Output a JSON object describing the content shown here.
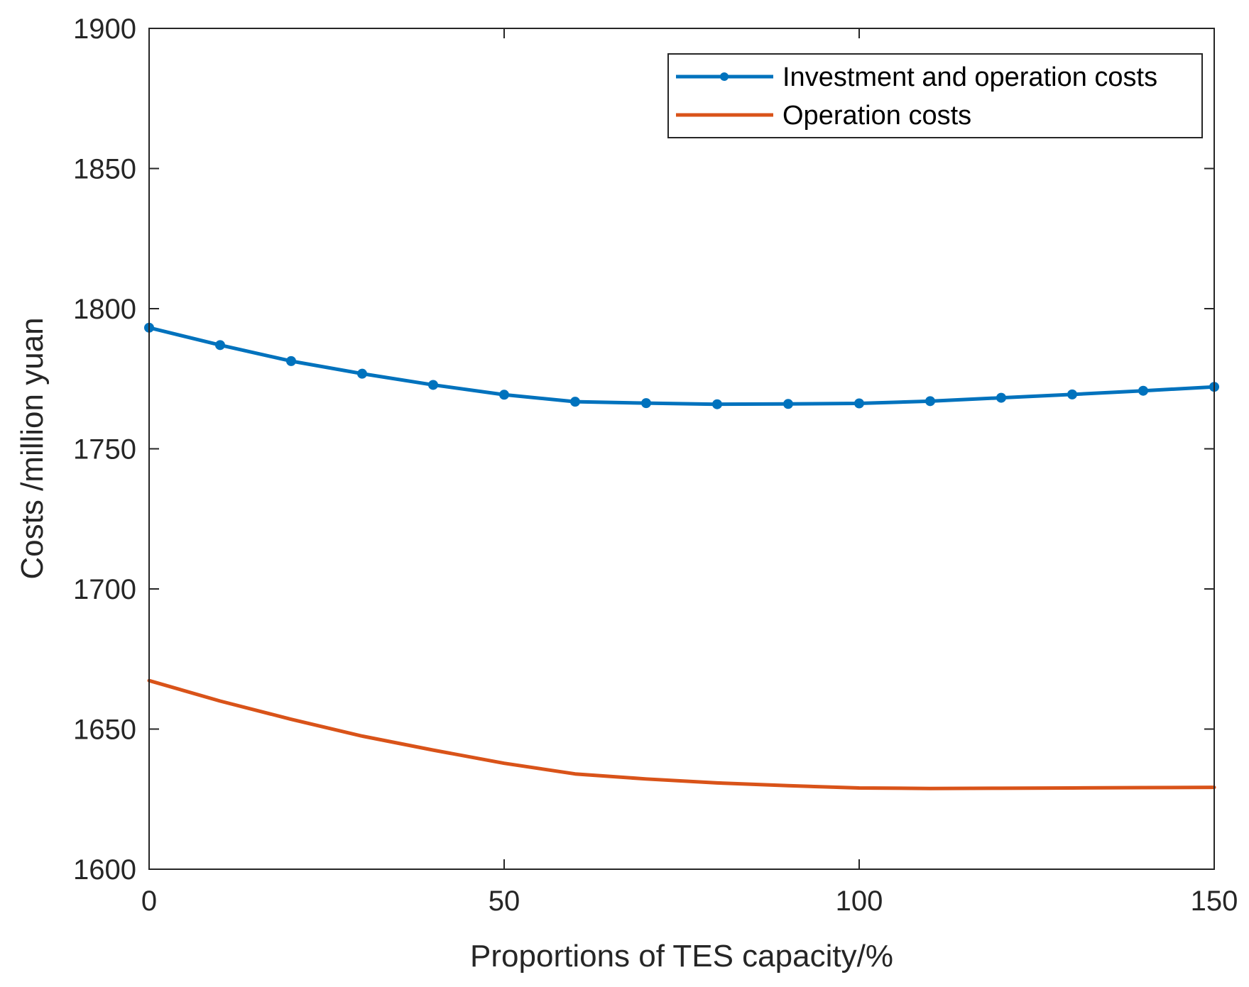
{
  "chart_data": {
    "type": "line",
    "title": "",
    "xlabel": "Proportions of TES capacity/%",
    "ylabel": "Costs /million yuan",
    "xlim": [
      0,
      150
    ],
    "ylim": [
      1600,
      1900
    ],
    "xticks": [
      0,
      50,
      100,
      150
    ],
    "yticks": [
      1600,
      1650,
      1700,
      1750,
      1800,
      1850,
      1900
    ],
    "xtick_labels": [
      "0",
      "50",
      "100",
      "150"
    ],
    "ytick_labels": [
      "1600",
      "1650",
      "1700",
      "1750",
      "1800",
      "1850",
      "1900"
    ],
    "grid": false,
    "legend_position": "top-right",
    "x": [
      0,
      10,
      20,
      30,
      40,
      50,
      60,
      70,
      80,
      90,
      100,
      110,
      120,
      130,
      140,
      150
    ],
    "series": [
      {
        "name": "Investment and operation costs",
        "color": "#0072BD",
        "marker": "dot",
        "values": [
          1793.2,
          1787.0,
          1781.3,
          1776.8,
          1772.8,
          1769.3,
          1766.8,
          1766.3,
          1765.9,
          1766.0,
          1766.2,
          1767.0,
          1768.2,
          1769.4,
          1770.7,
          1772.1
        ]
      },
      {
        "name": "Operation costs",
        "color": "#D95319",
        "marker": "none",
        "values": [
          1667.3,
          1660.0,
          1653.5,
          1647.5,
          1642.5,
          1637.8,
          1634.0,
          1632.2,
          1630.8,
          1629.8,
          1629.0,
          1628.8,
          1628.9,
          1629.0,
          1629.1,
          1629.2
        ]
      }
    ]
  }
}
